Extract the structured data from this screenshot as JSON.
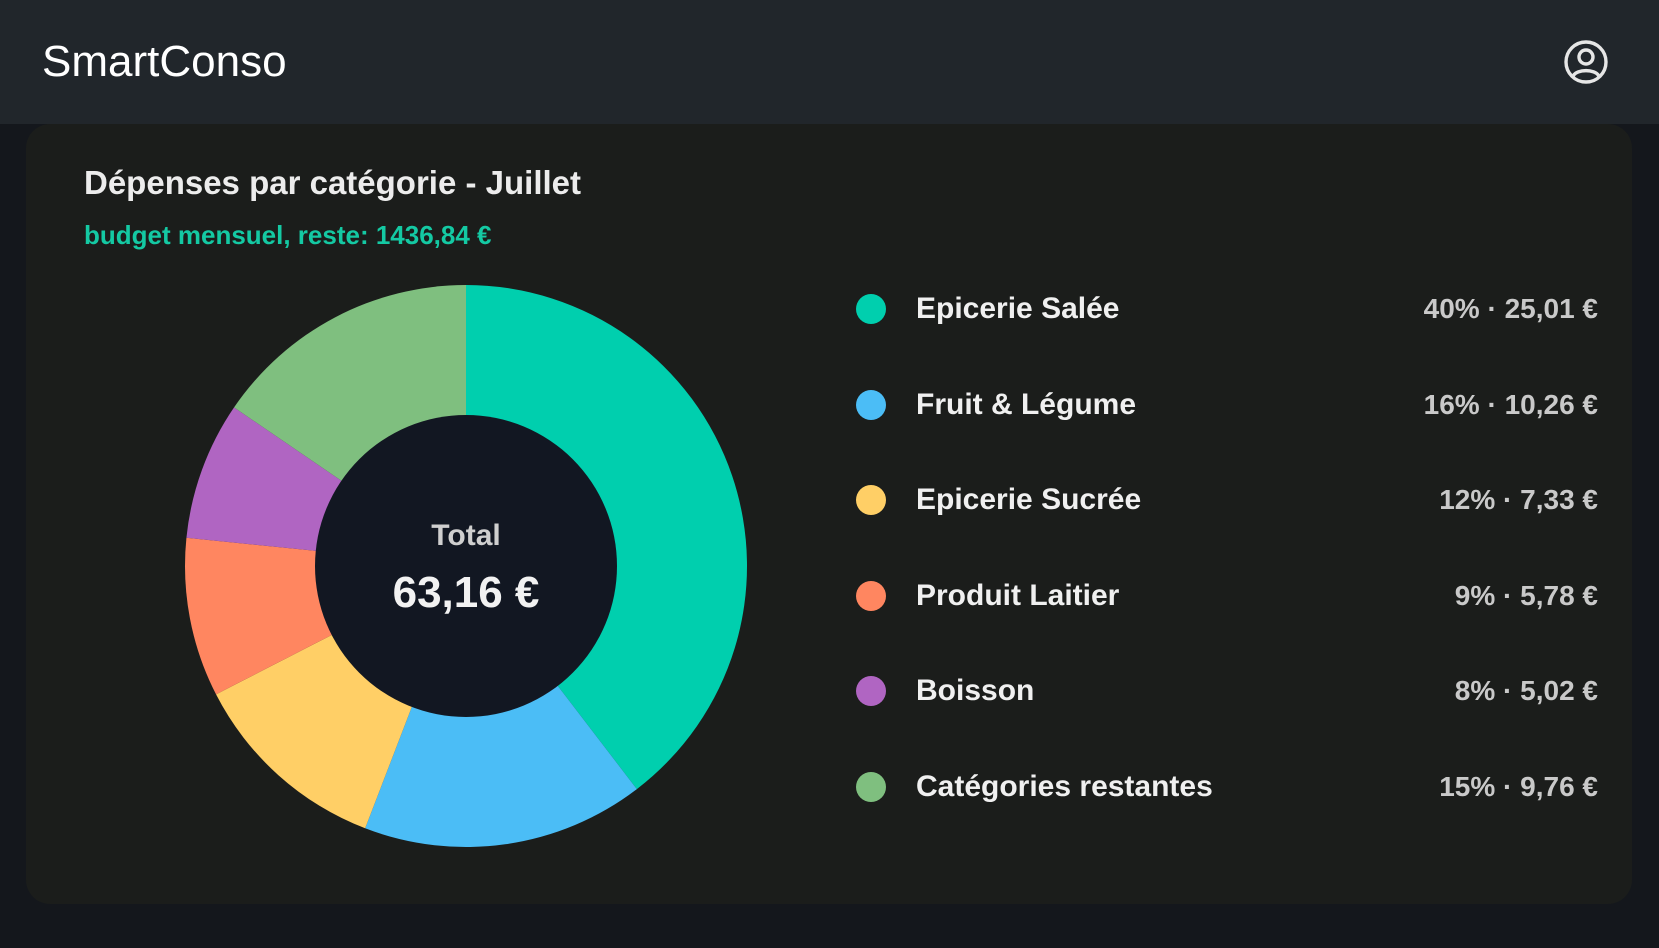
{
  "app": {
    "title": "SmartConso",
    "account_icon": "user-circle-icon"
  },
  "card": {
    "title": "Dépenses par catégorie - Juillet",
    "subtitle": "budget mensuel, reste: 1436,84 €",
    "subtitle_color": "#14c9a3"
  },
  "chart_data": {
    "type": "pie",
    "donut": true,
    "center_label": "Total",
    "center_value": "63,16 €",
    "categories": [
      "Epicerie Salée",
      "Fruit & Légume",
      "Epicerie Sucrée",
      "Produit Laitier",
      "Boisson",
      "Catégories restantes"
    ],
    "values": [
      25.01,
      10.26,
      7.33,
      5.78,
      5.02,
      9.76
    ],
    "colors": [
      "#00cfae",
      "#4bbdf6",
      "#ffcf66",
      "#ff8660",
      "#b065c2",
      "#7fbf7f"
    ],
    "legend_placement": "right"
  },
  "legend": [
    {
      "label": "Epicerie Salée",
      "value": "40% · 25,01 €"
    },
    {
      "label": "Fruit & Légume",
      "value": "16% · 10,26 €"
    },
    {
      "label": "Epicerie Sucrée",
      "value": "12% · 7,33 €"
    },
    {
      "label": "Produit Laitier",
      "value": "9% · 5,78 €"
    },
    {
      "label": "Boisson",
      "value": "8% · 5,02 €"
    },
    {
      "label": "Catégories restantes",
      "value": "15% · 9,76 €"
    }
  ]
}
